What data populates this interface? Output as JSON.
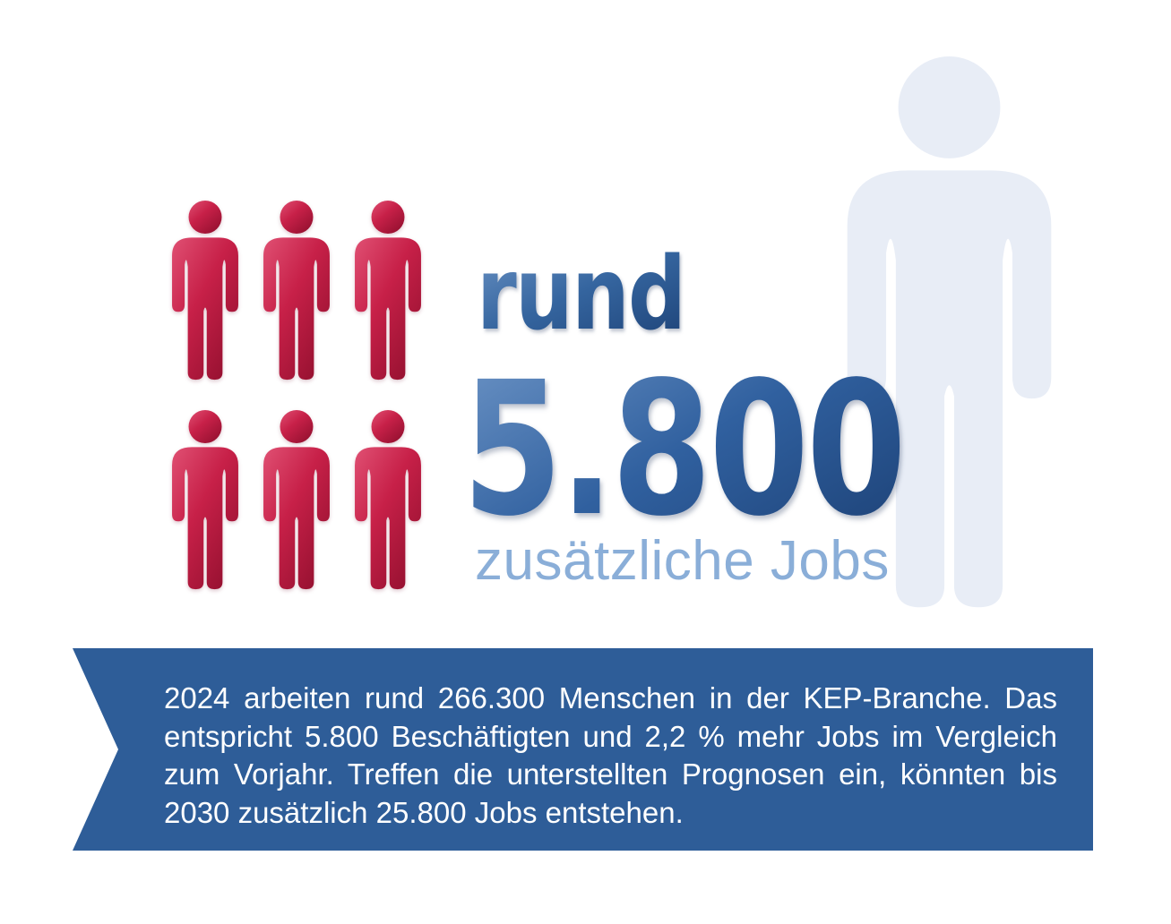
{
  "colors": {
    "figure_red": "#c72048",
    "headline_blue": "#2f5f9f",
    "subline_light_blue": "#8aaed8",
    "silhouette_pale_blue": "#e8edf6",
    "banner_blue": "#2e5d98",
    "banner_text": "#ffffff"
  },
  "headline": {
    "prefix": "rund",
    "number": "5.800",
    "suffix": "zusätzliche Jobs"
  },
  "pictograph": {
    "small_person_icon_count": 6,
    "rows": 2,
    "columns": 3,
    "large_person_icon_count": 1
  },
  "banner": {
    "lines": [
      "2024 arbeiten rund 266.300 Menschen in der KEP-Branche. Das",
      "entspricht 5.800 Beschäftigten und 2,2 % mehr Jobs im Vergleich",
      "zum Vorjahr. Treffen die unterstellten Prognosen ein, könnten bis",
      "2030 zusätzlich 25.800 Jobs entstehen."
    ]
  },
  "chart_data": {
    "type": "pictograph",
    "title": "rund 5.800 zusätzliche Jobs",
    "highlight_value": 5800,
    "highlight_label": "zusätzliche Jobs",
    "icon_units": {
      "small_red_person_icons": 6,
      "large_background_person_icon": 1
    },
    "facts": {
      "year": 2024,
      "kep_branche_total_employees": 266300,
      "additional_jobs_vs_prior_year": 5800,
      "job_growth_percent_vs_prior_year": 2.2,
      "projection_year": 2030,
      "projected_additional_jobs_by_2030": 25800
    },
    "caption": "2024 arbeiten rund 266.300 Menschen in der KEP-Branche. Das entspricht 5.800 Beschäftigten und 2,2 % mehr Jobs im Vergleich zum Vorjahr. Treffen die unterstellten Prognosen ein, könnten bis 2030 zusätzlich 25.800 Jobs entstehen."
  }
}
